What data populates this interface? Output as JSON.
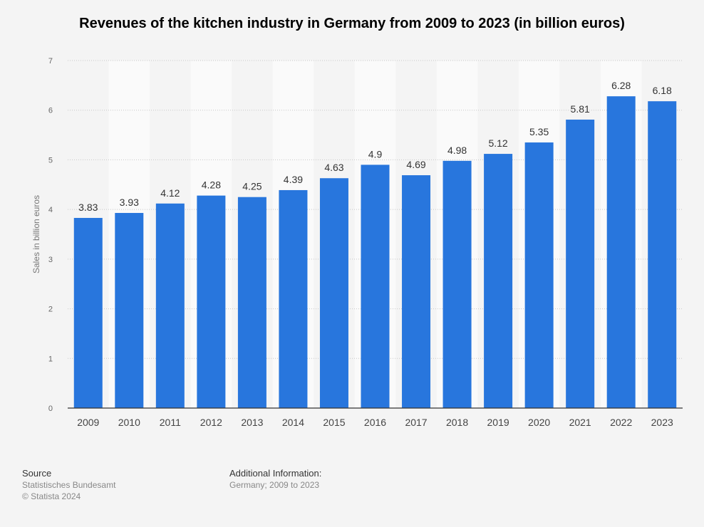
{
  "title": "Revenues of the kitchen industry in Germany from 2009 to 2023 (in billion euros)",
  "chart_data": {
    "type": "bar",
    "title": "Revenues of the kitchen industry in Germany from 2009 to 2023 (in billion euros)",
    "xlabel": "",
    "ylabel": "Sales in billion euros",
    "categories": [
      "2009",
      "2010",
      "2011",
      "2012",
      "2013",
      "2014",
      "2015",
      "2016",
      "2017",
      "2018",
      "2019",
      "2020",
      "2021",
      "2022",
      "2023"
    ],
    "values": [
      3.83,
      3.93,
      4.12,
      4.28,
      4.25,
      4.39,
      4.63,
      4.9,
      4.69,
      4.98,
      5.12,
      5.35,
      5.81,
      6.28,
      6.18
    ],
    "value_labels": [
      "3.83",
      "3.93",
      "4.12",
      "4.28",
      "4.25",
      "4.39",
      "4.63",
      "4.9",
      "4.69",
      "4.98",
      "5.12",
      "5.35",
      "5.81",
      "6.28",
      "6.18"
    ],
    "ylim": [
      0,
      7
    ],
    "yticks": [
      "0",
      "1",
      "2",
      "3",
      "4",
      "5",
      "6",
      "7"
    ],
    "grid": true,
    "bar_color": "#2876dd"
  },
  "footer": {
    "source_heading": "Source",
    "source_name": "Statistisches Bundesamt",
    "copyright": "© Statista 2024",
    "info_heading": "Additional Information:",
    "info_text": "Germany; 2009 to 2023"
  }
}
